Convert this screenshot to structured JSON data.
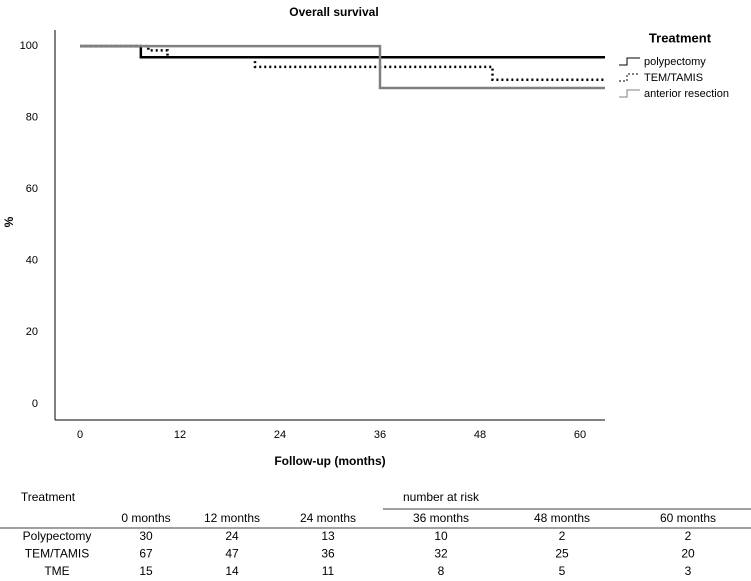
{
  "chart_data": {
    "type": "line",
    "step": true,
    "title": "Overall survival",
    "xlabel": "Follow-up (months)",
    "ylabel": "%",
    "xlim": [
      -3,
      63
    ],
    "ylim": [
      -4.5,
      104.5
    ],
    "xticks": [
      0,
      12,
      24,
      36,
      48,
      60
    ],
    "yticks": [
      0,
      20,
      40,
      60,
      80,
      100
    ],
    "grid": false,
    "legend_title": "Treatment",
    "legend_position": "upper right",
    "series": [
      {
        "name": "polypectomy",
        "color": "#000000",
        "line_style": "solid",
        "x": [
          0,
          7.3,
          7.3,
          63
        ],
        "values": [
          100,
          100,
          96.9,
          96.9
        ]
      },
      {
        "name": "TEM/TAMIS",
        "color": "#000000",
        "line_style": "dotted",
        "x": [
          0,
          8.2,
          8.2,
          10.5,
          10.5,
          21,
          21,
          49.5,
          49.5,
          63
        ],
        "values": [
          100,
          100,
          98.8,
          98.8,
          96.9,
          96.9,
          94.2,
          94.2,
          90.6,
          90.6
        ]
      },
      {
        "name": "anterior resection",
        "color": "#808080",
        "line_style": "solid",
        "x": [
          0,
          36,
          36,
          63
        ],
        "values": [
          100,
          100,
          88.3,
          88.3
        ]
      }
    ]
  },
  "risk_table": {
    "header": "Treatment",
    "group_header": "number at risk",
    "columns": [
      "0 months",
      "12 months",
      "24  months",
      "36 months",
      "48 months",
      "60 months"
    ],
    "rows": [
      [
        "Polypectomy",
        "30",
        "24",
        "13",
        "10",
        "2",
        "2"
      ],
      [
        "TEM/TAMIS",
        "67",
        "47",
        "36",
        "32",
        "25",
        "20"
      ],
      [
        "TME",
        "15",
        "14",
        "11",
        "8",
        "5",
        "3"
      ]
    ]
  }
}
